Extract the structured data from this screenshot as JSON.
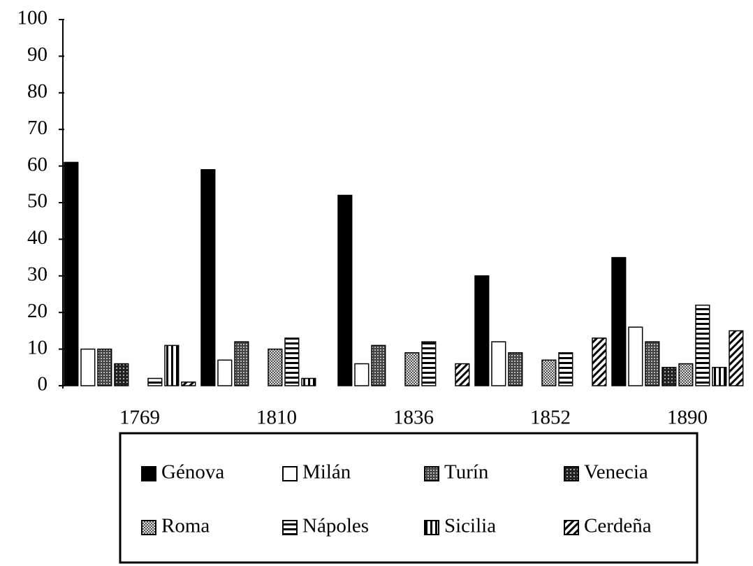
{
  "chart_data": {
    "type": "bar",
    "categories": [
      "1769",
      "1810",
      "1836",
      "1852",
      "1890"
    ],
    "series": [
      {
        "name": "Génova",
        "color": "#000000",
        "pattern": "solid",
        "values": [
          61,
          59,
          52,
          30,
          35
        ]
      },
      {
        "name": "Milán",
        "color": "#000000",
        "pattern": "empty",
        "values": [
          10,
          7,
          6,
          12,
          16
        ]
      },
      {
        "name": "Turín",
        "color": "#000000",
        "pattern": "dense",
        "values": [
          10,
          12,
          11,
          9,
          12
        ]
      },
      {
        "name": "Venecia",
        "color": "#000000",
        "pattern": "grid",
        "values": [
          6,
          0,
          0,
          0,
          5
        ]
      },
      {
        "name": "Roma",
        "color": "#000000",
        "pattern": "dots",
        "values": [
          0,
          10,
          9,
          7,
          6
        ]
      },
      {
        "name": "Nápoles",
        "color": "#000000",
        "pattern": "hstripes",
        "values": [
          2,
          13,
          12,
          9,
          22
        ]
      },
      {
        "name": "Sicilia",
        "color": "#000000",
        "pattern": "vstripes",
        "values": [
          11,
          2,
          0,
          0,
          5
        ]
      },
      {
        "name": "Cerdeña",
        "color": "#000000",
        "pattern": "diagonal",
        "values": [
          1,
          0,
          6,
          13,
          15
        ]
      }
    ],
    "ylim": [
      0,
      100
    ],
    "yticks": [
      0,
      10,
      20,
      30,
      40,
      50,
      60,
      70,
      80,
      90,
      100
    ],
    "grid": false
  }
}
